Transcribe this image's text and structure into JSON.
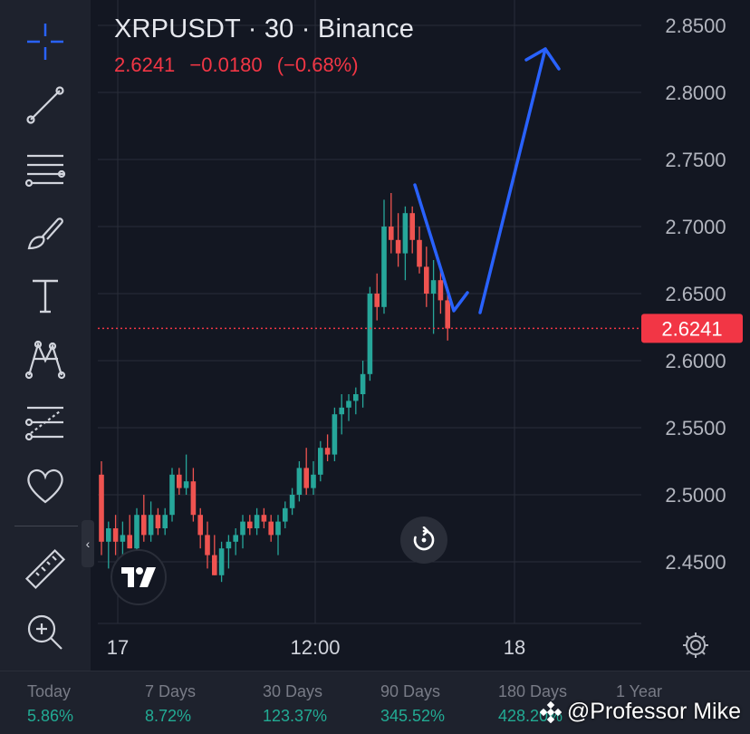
{
  "legend": {
    "symbol": "XRPUSDT",
    "interval": "30",
    "exchange": "Binance",
    "close": "2.6241",
    "change": "−0.0180",
    "change_pct": "(−0.68%)"
  },
  "colors": {
    "background": "#131722",
    "grid": "#2a2e39",
    "up": "#26a69a",
    "down": "#ef5350",
    "annotation": "#2962ff",
    "price_tag": "#f23645"
  },
  "toolbar": {
    "tools": [
      "crosshair-icon",
      "trend-line-icon",
      "fib-retracement-icon",
      "brush-icon",
      "text-icon",
      "pattern-icon",
      "prediction-icon",
      "favorites-heart-icon",
      "ruler-icon",
      "zoom-in-icon"
    ],
    "collapse_glyph": "‹"
  },
  "chart_data": {
    "type": "candlestick",
    "title": "XRPUSDT · 30 · Binance",
    "interval": "30",
    "ylim": [
      2.42,
      2.87
    ],
    "y_ticks": [
      "2.8500",
      "2.8000",
      "2.7500",
      "2.7000",
      "2.6500",
      "2.6000",
      "2.5500",
      "2.5000",
      "2.4500"
    ],
    "x_ticks": [
      "17",
      "12:00",
      "18"
    ],
    "last_price": "2.6241",
    "grid": true,
    "candles": [
      [
        2.515,
        2.525,
        2.455,
        2.465
      ],
      [
        2.465,
        2.48,
        2.445,
        2.475
      ],
      [
        2.475,
        2.485,
        2.455,
        2.465
      ],
      [
        2.465,
        2.48,
        2.45,
        2.47
      ],
      [
        2.47,
        2.485,
        2.46,
        2.46
      ],
      [
        2.46,
        2.49,
        2.455,
        2.485
      ],
      [
        2.485,
        2.5,
        2.465,
        2.47
      ],
      [
        2.47,
        2.495,
        2.465,
        2.485
      ],
      [
        2.485,
        2.49,
        2.47,
        2.475
      ],
      [
        2.475,
        2.49,
        2.47,
        2.485
      ],
      [
        2.485,
        2.52,
        2.48,
        2.515
      ],
      [
        2.515,
        2.52,
        2.5,
        2.505
      ],
      [
        2.505,
        2.53,
        2.5,
        2.51
      ],
      [
        2.51,
        2.52,
        2.48,
        2.485
      ],
      [
        2.485,
        2.49,
        2.46,
        2.47
      ],
      [
        2.47,
        2.48,
        2.445,
        2.455
      ],
      [
        2.455,
        2.47,
        2.44,
        2.44
      ],
      [
        2.44,
        2.465,
        2.435,
        2.46
      ],
      [
        2.46,
        2.47,
        2.445,
        2.465
      ],
      [
        2.465,
        2.475,
        2.455,
        2.47
      ],
      [
        2.47,
        2.485,
        2.46,
        2.48
      ],
      [
        2.48,
        2.485,
        2.47,
        2.475
      ],
      [
        2.475,
        2.49,
        2.47,
        2.485
      ],
      [
        2.485,
        2.49,
        2.475,
        2.48
      ],
      [
        2.48,
        2.485,
        2.465,
        2.47
      ],
      [
        2.47,
        2.485,
        2.455,
        2.48
      ],
      [
        2.48,
        2.495,
        2.475,
        2.49
      ],
      [
        2.49,
        2.505,
        2.485,
        2.5
      ],
      [
        2.5,
        2.525,
        2.495,
        2.52
      ],
      [
        2.52,
        2.535,
        2.5,
        2.505
      ],
      [
        2.505,
        2.525,
        2.5,
        2.515
      ],
      [
        2.515,
        2.54,
        2.51,
        2.535
      ],
      [
        2.535,
        2.545,
        2.525,
        2.53
      ],
      [
        2.53,
        2.565,
        2.525,
        2.56
      ],
      [
        2.56,
        2.575,
        2.545,
        2.565
      ],
      [
        2.565,
        2.575,
        2.555,
        2.57
      ],
      [
        2.57,
        2.58,
        2.56,
        2.575
      ],
      [
        2.575,
        2.6,
        2.565,
        2.59
      ],
      [
        2.59,
        2.655,
        2.585,
        2.65
      ],
      [
        2.65,
        2.665,
        2.63,
        2.64
      ],
      [
        2.64,
        2.72,
        2.635,
        2.7
      ],
      [
        2.7,
        2.725,
        2.68,
        2.69
      ],
      [
        2.69,
        2.71,
        2.67,
        2.68
      ],
      [
        2.68,
        2.715,
        2.66,
        2.71
      ],
      [
        2.71,
        2.715,
        2.68,
        2.69
      ],
      [
        2.69,
        2.7,
        2.665,
        2.67
      ],
      [
        2.67,
        2.685,
        2.64,
        2.65
      ],
      [
        2.65,
        2.675,
        2.62,
        2.66
      ],
      [
        2.66,
        2.67,
        2.635,
        2.645
      ],
      [
        2.645,
        2.65,
        2.615,
        2.624
      ]
    ],
    "annotations": [
      "down-trend-stroke",
      "up-arrow-projection"
    ]
  },
  "performance": [
    {
      "label": "Today",
      "value": "5.86%"
    },
    {
      "label": "7 Days",
      "value": "8.72%"
    },
    {
      "label": "30 Days",
      "value": "123.37%"
    },
    {
      "label": "90 Days",
      "value": "345.52%"
    },
    {
      "label": "180 Days",
      "value": "428.20%"
    },
    {
      "label": "1 Year",
      "value": " "
    }
  ],
  "watermark": "@Professor Mike"
}
